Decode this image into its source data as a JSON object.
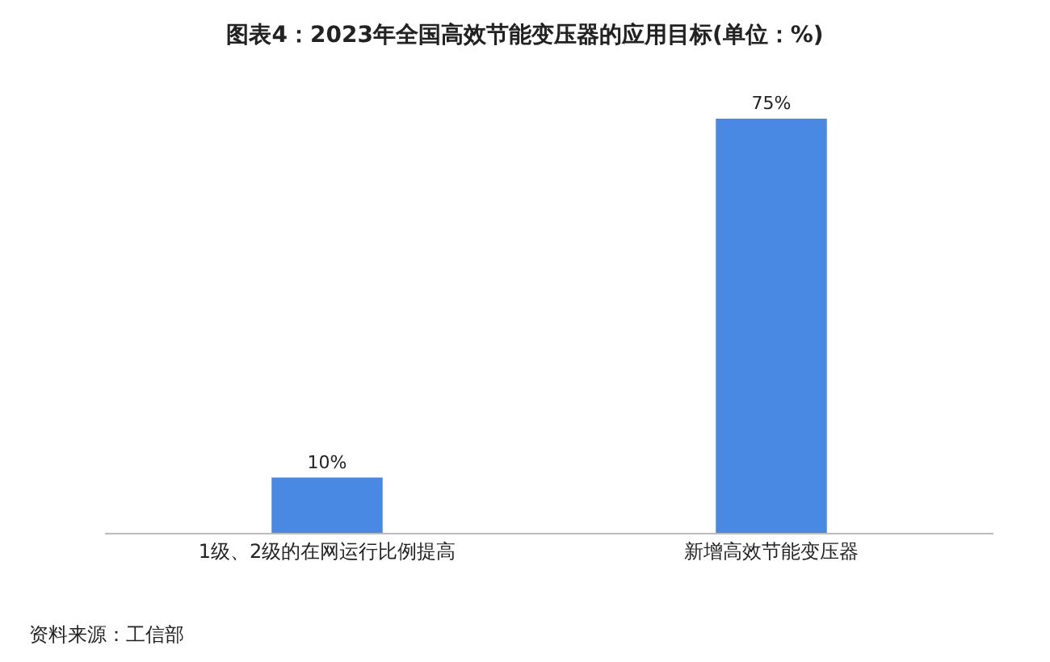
{
  "chart_data": {
    "type": "bar",
    "title": "图表4：2023年全国高效节能变压器的应用目标(单位：%)",
    "categories": [
      "1级、2级的在网运行比例提高",
      "新增高效节能变压器"
    ],
    "values": [
      10,
      75
    ],
    "color": "#4a89e3",
    "data_labels": true,
    "value_labels": [
      "10%",
      "75%"
    ],
    "annotations": [
      "资料来源：工信部"
    ]
  }
}
